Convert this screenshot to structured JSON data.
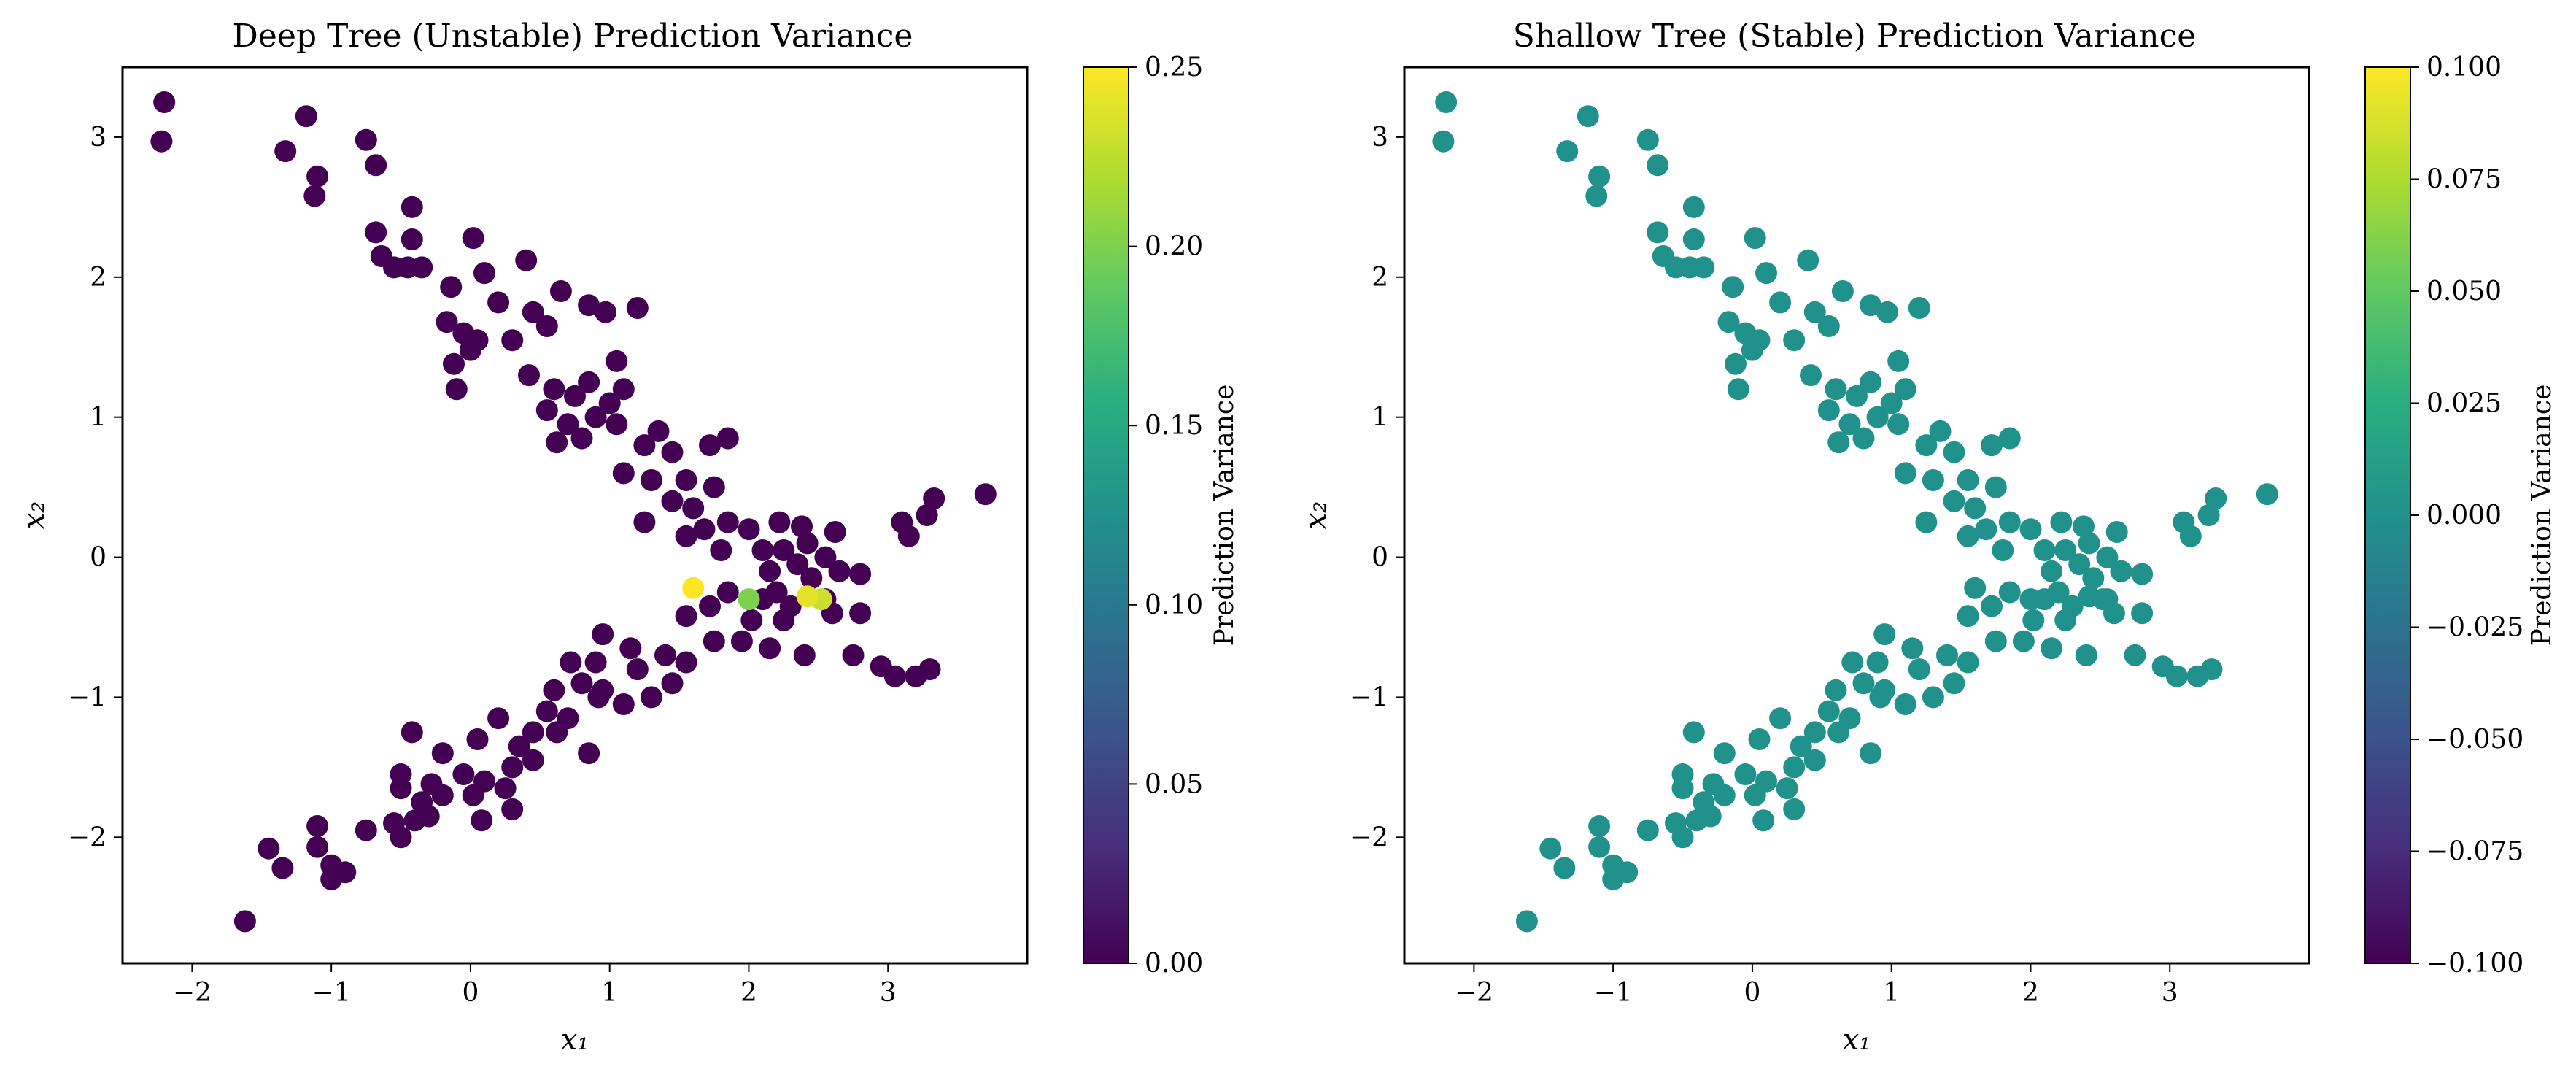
{
  "chart_data": [
    {
      "type": "scatter",
      "title": "Deep Tree (Unstable) Prediction Variance",
      "xlabel": "x₁",
      "ylabel": "x₂",
      "xlim": [
        -2.5,
        4.0
      ],
      "ylim": [
        -2.9,
        3.5
      ],
      "xticks": [
        -2,
        -1,
        0,
        1,
        2,
        3
      ],
      "yticks": [
        -2,
        -1,
        0,
        1,
        2,
        3
      ],
      "colorbar": {
        "label": "Prediction Variance",
        "colormap": "viridis",
        "range": [
          0.0,
          0.25
        ],
        "ticks": [
          0.0,
          0.05,
          0.1,
          0.15,
          0.2,
          0.25
        ],
        "tick_labels": [
          "0.00",
          "0.05",
          "0.10",
          "0.15",
          "0.20",
          "0.25"
        ]
      },
      "grid": false,
      "points": [
        [
          -2.2,
          3.25,
          0.0
        ],
        [
          -2.22,
          2.97,
          0.0
        ],
        [
          -1.18,
          3.15,
          0.0
        ],
        [
          -1.33,
          2.9,
          0.0
        ],
        [
          -1.1,
          2.72,
          0.0
        ],
        [
          -1.12,
          2.58,
          0.0
        ],
        [
          -0.75,
          2.98,
          0.0
        ],
        [
          -0.68,
          2.8,
          0.0
        ],
        [
          -0.68,
          2.32,
          0.0
        ],
        [
          -0.42,
          2.5,
          0.0
        ],
        [
          -0.42,
          2.27,
          0.0
        ],
        [
          -0.64,
          2.15,
          0.0
        ],
        [
          -0.55,
          2.07,
          0.0
        ],
        [
          -0.45,
          2.07,
          0.0
        ],
        [
          -0.35,
          2.07,
          0.0
        ],
        [
          0.02,
          2.28,
          0.0
        ],
        [
          0.1,
          2.03,
          0.0
        ],
        [
          0.4,
          2.12,
          0.0
        ],
        [
          -0.14,
          1.93,
          0.0
        ],
        [
          0.2,
          1.82,
          0.0
        ],
        [
          0.65,
          1.9,
          0.0
        ],
        [
          0.85,
          1.8,
          0.0
        ],
        [
          0.97,
          1.75,
          0.0
        ],
        [
          1.2,
          1.78,
          0.0
        ],
        [
          -0.17,
          1.68,
          0.0
        ],
        [
          -0.05,
          1.6,
          0.0
        ],
        [
          0.05,
          1.55,
          0.0
        ],
        [
          0.3,
          1.55,
          0.0
        ],
        [
          0.45,
          1.75,
          0.0
        ],
        [
          0.55,
          1.65,
          0.0
        ],
        [
          -0.12,
          1.38,
          0.0
        ],
        [
          -0.1,
          1.2,
          0.0
        ],
        [
          0.0,
          1.48,
          0.0
        ],
        [
          0.42,
          1.3,
          0.0
        ],
        [
          0.6,
          1.2,
          0.0
        ],
        [
          0.75,
          1.15,
          0.0
        ],
        [
          0.85,
          1.25,
          0.0
        ],
        [
          1.05,
          1.4,
          0.0
        ],
        [
          1.1,
          1.2,
          0.0
        ],
        [
          0.55,
          1.05,
          0.0
        ],
        [
          0.7,
          0.95,
          0.0
        ],
        [
          0.9,
          1.0,
          0.0
        ],
        [
          1.0,
          1.1,
          0.0
        ],
        [
          0.62,
          0.82,
          0.0
        ],
        [
          0.8,
          0.85,
          0.0
        ],
        [
          1.05,
          0.95,
          0.0
        ],
        [
          1.25,
          0.8,
          0.0
        ],
        [
          1.35,
          0.9,
          0.0
        ],
        [
          1.45,
          0.75,
          0.0
        ],
        [
          1.1,
          0.6,
          0.0
        ],
        [
          1.3,
          0.55,
          0.0
        ],
        [
          1.55,
          0.55,
          0.0
        ],
        [
          1.72,
          0.8,
          0.0
        ],
        [
          1.85,
          0.85,
          0.0
        ],
        [
          1.75,
          0.5,
          0.0
        ],
        [
          1.45,
          0.4,
          0.0
        ],
        [
          1.6,
          0.35,
          0.0
        ],
        [
          1.25,
          0.25,
          0.0
        ],
        [
          1.68,
          0.2,
          0.0
        ],
        [
          1.85,
          0.25,
          0.0
        ],
        [
          1.55,
          0.15,
          0.0
        ],
        [
          1.8,
          0.05,
          0.0
        ],
        [
          2.0,
          0.2,
          0.0
        ],
        [
          2.22,
          0.25,
          0.0
        ],
        [
          2.38,
          0.22,
          0.0
        ],
        [
          2.62,
          0.18,
          0.0
        ],
        [
          2.1,
          0.05,
          0.0
        ],
        [
          2.25,
          0.05,
          0.0
        ],
        [
          2.42,
          0.1,
          0.0
        ],
        [
          2.55,
          0.0,
          0.0
        ],
        [
          2.35,
          -0.05,
          0.0
        ],
        [
          2.15,
          -0.1,
          0.0
        ],
        [
          2.45,
          -0.15,
          0.0
        ],
        [
          2.65,
          -0.1,
          0.0
        ],
        [
          2.8,
          -0.12,
          0.0
        ],
        [
          2.2,
          -0.25,
          0.0
        ],
        [
          2.55,
          -0.3,
          0.0
        ],
        [
          2.3,
          -0.35,
          0.0
        ],
        [
          2.1,
          -0.3,
          0.0
        ],
        [
          2.02,
          -0.45,
          0.0
        ],
        [
          2.25,
          -0.45,
          0.0
        ],
        [
          2.6,
          -0.4,
          0.0
        ],
        [
          2.8,
          -0.4,
          0.0
        ],
        [
          1.85,
          -0.25,
          0.0
        ],
        [
          1.72,
          -0.35,
          0.0
        ],
        [
          1.55,
          -0.42,
          0.0
        ],
        [
          1.75,
          -0.6,
          0.0
        ],
        [
          1.95,
          -0.6,
          0.0
        ],
        [
          2.15,
          -0.65,
          0.0
        ],
        [
          2.4,
          -0.7,
          0.0
        ],
        [
          2.75,
          -0.7,
          0.0
        ],
        [
          2.95,
          -0.78,
          0.0
        ],
        [
          3.05,
          -0.85,
          0.0
        ],
        [
          3.2,
          -0.85,
          0.0
        ],
        [
          3.3,
          -0.8,
          0.0
        ],
        [
          3.1,
          0.25,
          0.0
        ],
        [
          3.15,
          0.15,
          0.0
        ],
        [
          3.28,
          0.3,
          0.0
        ],
        [
          3.33,
          0.42,
          0.0
        ],
        [
          3.7,
          0.45,
          0.0
        ],
        [
          1.6,
          -0.22,
          0.25
        ],
        [
          2.42,
          -0.28,
          0.24
        ],
        [
          2.52,
          -0.3,
          0.23
        ],
        [
          2.0,
          -0.3,
          0.2
        ],
        [
          0.95,
          -0.55,
          0.0
        ],
        [
          1.15,
          -0.65,
          0.0
        ],
        [
          0.9,
          -0.75,
          0.0
        ],
        [
          1.2,
          -0.8,
          0.0
        ],
        [
          1.4,
          -0.7,
          0.0
        ],
        [
          1.55,
          -0.75,
          0.0
        ],
        [
          0.72,
          -0.75,
          0.0
        ],
        [
          0.8,
          -0.9,
          0.0
        ],
        [
          0.95,
          -0.95,
          0.0
        ],
        [
          1.1,
          -1.05,
          0.0
        ],
        [
          1.3,
          -1.0,
          0.0
        ],
        [
          1.45,
          -0.9,
          0.0
        ],
        [
          0.6,
          -0.95,
          0.0
        ],
        [
          0.55,
          -1.1,
          0.0
        ],
        [
          0.7,
          -1.15,
          0.0
        ],
        [
          0.45,
          -1.25,
          0.0
        ],
        [
          0.35,
          -1.35,
          0.0
        ],
        [
          0.2,
          -1.15,
          0.0
        ],
        [
          0.05,
          -1.3,
          0.0
        ],
        [
          0.3,
          -1.5,
          0.0
        ],
        [
          0.45,
          -1.45,
          0.0
        ],
        [
          0.85,
          -1.4,
          0.0
        ],
        [
          0.62,
          -1.25,
          0.0
        ],
        [
          0.92,
          -1.0,
          0.0
        ],
        [
          -0.42,
          -1.25,
          0.0
        ],
        [
          -0.2,
          -1.4,
          0.0
        ],
        [
          -0.05,
          -1.55,
          0.0
        ],
        [
          0.1,
          -1.6,
          0.0
        ],
        [
          0.25,
          -1.65,
          0.0
        ],
        [
          0.3,
          -1.8,
          0.0
        ],
        [
          -0.28,
          -1.62,
          0.0
        ],
        [
          -0.5,
          -1.55,
          0.0
        ],
        [
          -0.5,
          -1.65,
          0.0
        ],
        [
          -0.35,
          -1.75,
          0.0
        ],
        [
          -0.2,
          -1.7,
          0.0
        ],
        [
          0.02,
          -1.7,
          0.0
        ],
        [
          -0.4,
          -1.88,
          0.0
        ],
        [
          -0.3,
          -1.85,
          0.0
        ],
        [
          -0.55,
          -1.9,
          0.0
        ],
        [
          -0.5,
          -2.0,
          0.0
        ],
        [
          0.08,
          -1.88,
          0.0
        ],
        [
          -0.75,
          -1.95,
          0.0
        ],
        [
          -1.1,
          -1.92,
          0.0
        ],
        [
          -1.1,
          -2.07,
          0.0
        ],
        [
          -1.45,
          -2.08,
          0.0
        ],
        [
          -1.35,
          -2.22,
          0.0
        ],
        [
          -1.0,
          -2.2,
          0.0
        ],
        [
          -0.9,
          -2.25,
          0.0
        ],
        [
          -1.0,
          -2.3,
          0.0
        ],
        [
          -1.62,
          -2.6,
          0.0
        ]
      ]
    },
    {
      "type": "scatter",
      "title": "Shallow Tree (Stable) Prediction Variance",
      "xlabel": "x₁",
      "ylabel": "x₂",
      "xlim": [
        -2.5,
        4.0
      ],
      "ylim": [
        -2.9,
        3.5
      ],
      "xticks": [
        -2,
        -1,
        0,
        1,
        2,
        3
      ],
      "yticks": [
        -2,
        -1,
        0,
        1,
        2,
        3
      ],
      "colorbar": {
        "label": "Prediction Variance",
        "colormap": "viridis",
        "range": [
          -0.1,
          0.1
        ],
        "ticks": [
          -0.1,
          -0.075,
          -0.05,
          -0.025,
          0.0,
          0.025,
          0.05,
          0.075,
          0.1
        ],
        "tick_labels": [
          "−0.100",
          "−0.075",
          "−0.050",
          "−0.025",
          "0.000",
          "0.025",
          "0.050",
          "0.075",
          "0.100"
        ]
      },
      "grid": false,
      "all_points_value": 0.0,
      "note_points": "same x/y points as deep tree panel"
    }
  ]
}
